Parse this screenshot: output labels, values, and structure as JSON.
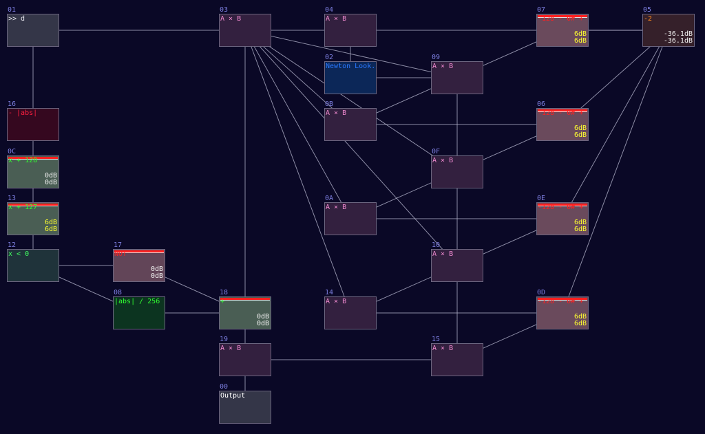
{
  "nodes": [
    {
      "id": "01",
      "title": ">> d",
      "bg": "#343648",
      "tc": "#e8e8f0"
    },
    {
      "id": "03",
      "title": "A × B",
      "bg": "#33203f",
      "tc": "#f08ad0"
    },
    {
      "id": "04",
      "title": "A × B",
      "bg": "#33203f",
      "tc": "#f08ad0"
    },
    {
      "id": "07",
      "title": "-128 - 0# + ..",
      "bg": "#6a4a5c",
      "tc": "#ff2020",
      "bar": true,
      "levels": [
        "6dB",
        "6dB"
      ],
      "lc": "#ffff30"
    },
    {
      "id": "05",
      "title": "-2",
      "bg": "#35202a",
      "tc": "#ff8a20",
      "levels": [
        "-36.1dB",
        "-36.1dB"
      ],
      "lc": "#f0f0f0"
    },
    {
      "id": "02",
      "title": "Newton Look.B",
      "bg": "#0c2758",
      "tc": "#2a78ff"
    },
    {
      "id": "09",
      "title": "A × B",
      "bg": "#33203f",
      "tc": "#f08ad0"
    },
    {
      "id": "16",
      "title": "- |abs|",
      "bg": "#35081f",
      "tc": "#ff2040"
    },
    {
      "id": "0B",
      "title": "A × B",
      "bg": "#33203f",
      "tc": "#f08ad0"
    },
    {
      "id": "06",
      "title": "-128 - 0# + ..",
      "bg": "#6a4a5c",
      "tc": "#ff2020",
      "bar": true,
      "levels": [
        "6dB",
        "6dB"
      ],
      "lc": "#ffff30"
    },
    {
      "id": "0C",
      "title": "x + 128",
      "bg": "#4a5e54",
      "tc": "#30ff30",
      "bar": true,
      "levels": [
        "0dB",
        "0dB"
      ],
      "lc": "#f0f0f0"
    },
    {
      "id": "0F",
      "title": "A × B",
      "bg": "#33203f",
      "tc": "#f08ad0"
    },
    {
      "id": "13",
      "title": "x + 127",
      "bg": "#4a5e54",
      "tc": "#30ff30",
      "bar": true,
      "levels": [
        "6dB",
        "6dB"
      ],
      "lc": "#ffff30"
    },
    {
      "id": "0A",
      "title": "A × B",
      "bg": "#33203f",
      "tc": "#f08ad0"
    },
    {
      "id": "0E",
      "title": "-128 - 0# + ..",
      "bg": "#6a4a5c",
      "tc": "#ff2020",
      "bar": true,
      "levels": [
        "6dB",
        "6dB"
      ],
      "lc": "#ffff30"
    },
    {
      "id": "12",
      "title": "x < 0",
      "bg": "#1f333a",
      "tc": "#40ff60"
    },
    {
      "id": "17",
      "title": "NOT",
      "bg": "#624558",
      "tc": "#ff2020",
      "bar": true,
      "levels": [
        "0dB",
        "0dB"
      ],
      "lc": "#f0f0f0"
    },
    {
      "id": "10",
      "title": "A × B",
      "bg": "#33203f",
      "tc": "#f08ad0"
    },
    {
      "id": "08",
      "title": "|abs| / 256",
      "bg": "#0c3420",
      "tc": "#30ff30"
    },
    {
      "id": "18",
      "title": "+",
      "bg": "#4a5e54",
      "tc": "#30ff30",
      "bar": true,
      "levels": [
        "0dB",
        "0dB"
      ],
      "lc": "#f0f0f0"
    },
    {
      "id": "14",
      "title": "A × B",
      "bg": "#33203f",
      "tc": "#f08ad0"
    },
    {
      "id": "0D",
      "title": "-128 - 0# + ..",
      "bg": "#6a4a5c",
      "tc": "#ff2020",
      "bar": true,
      "levels": [
        "6dB",
        "6dB"
      ],
      "lc": "#ffff30"
    },
    {
      "id": "19",
      "title": "A × B",
      "bg": "#33203f",
      "tc": "#f08ad0"
    },
    {
      "id": "15",
      "title": "A × B",
      "bg": "#33203f",
      "tc": "#f08ad0"
    },
    {
      "id": "00",
      "title": "Output",
      "bg": "#343648",
      "tc": "#ffffff"
    }
  ],
  "edges": [
    [
      "01",
      "03"
    ],
    [
      "03",
      "04"
    ],
    [
      "04",
      "07"
    ],
    [
      "07",
      "05"
    ],
    [
      "01",
      "16"
    ],
    [
      "16",
      "0C"
    ],
    [
      "0C",
      "13"
    ],
    [
      "13",
      "12"
    ],
    [
      "12",
      "17"
    ],
    [
      "12",
      "08"
    ],
    [
      "17",
      "18"
    ],
    [
      "08",
      "18"
    ],
    [
      "03",
      "18"
    ],
    [
      "18",
      "19"
    ],
    [
      "19",
      "00"
    ],
    [
      "03",
      "0B"
    ],
    [
      "03",
      "0A"
    ],
    [
      "03",
      "14"
    ],
    [
      "03",
      "09"
    ],
    [
      "03",
      "0F"
    ],
    [
      "03",
      "10"
    ],
    [
      "04",
      "02"
    ],
    [
      "02",
      "09"
    ],
    [
      "09",
      "0F"
    ],
    [
      "0F",
      "10"
    ],
    [
      "10",
      "15"
    ],
    [
      "19",
      "15"
    ],
    [
      "0B",
      "06"
    ],
    [
      "0B",
      "07"
    ],
    [
      "0A",
      "0E"
    ],
    [
      "0A",
      "06"
    ],
    [
      "14",
      "0D"
    ],
    [
      "14",
      "0E"
    ],
    [
      "15",
      "0D"
    ],
    [
      "05",
      "07"
    ],
    [
      "05",
      "06"
    ],
    [
      "05",
      "0E"
    ],
    [
      "05",
      "0D"
    ]
  ]
}
